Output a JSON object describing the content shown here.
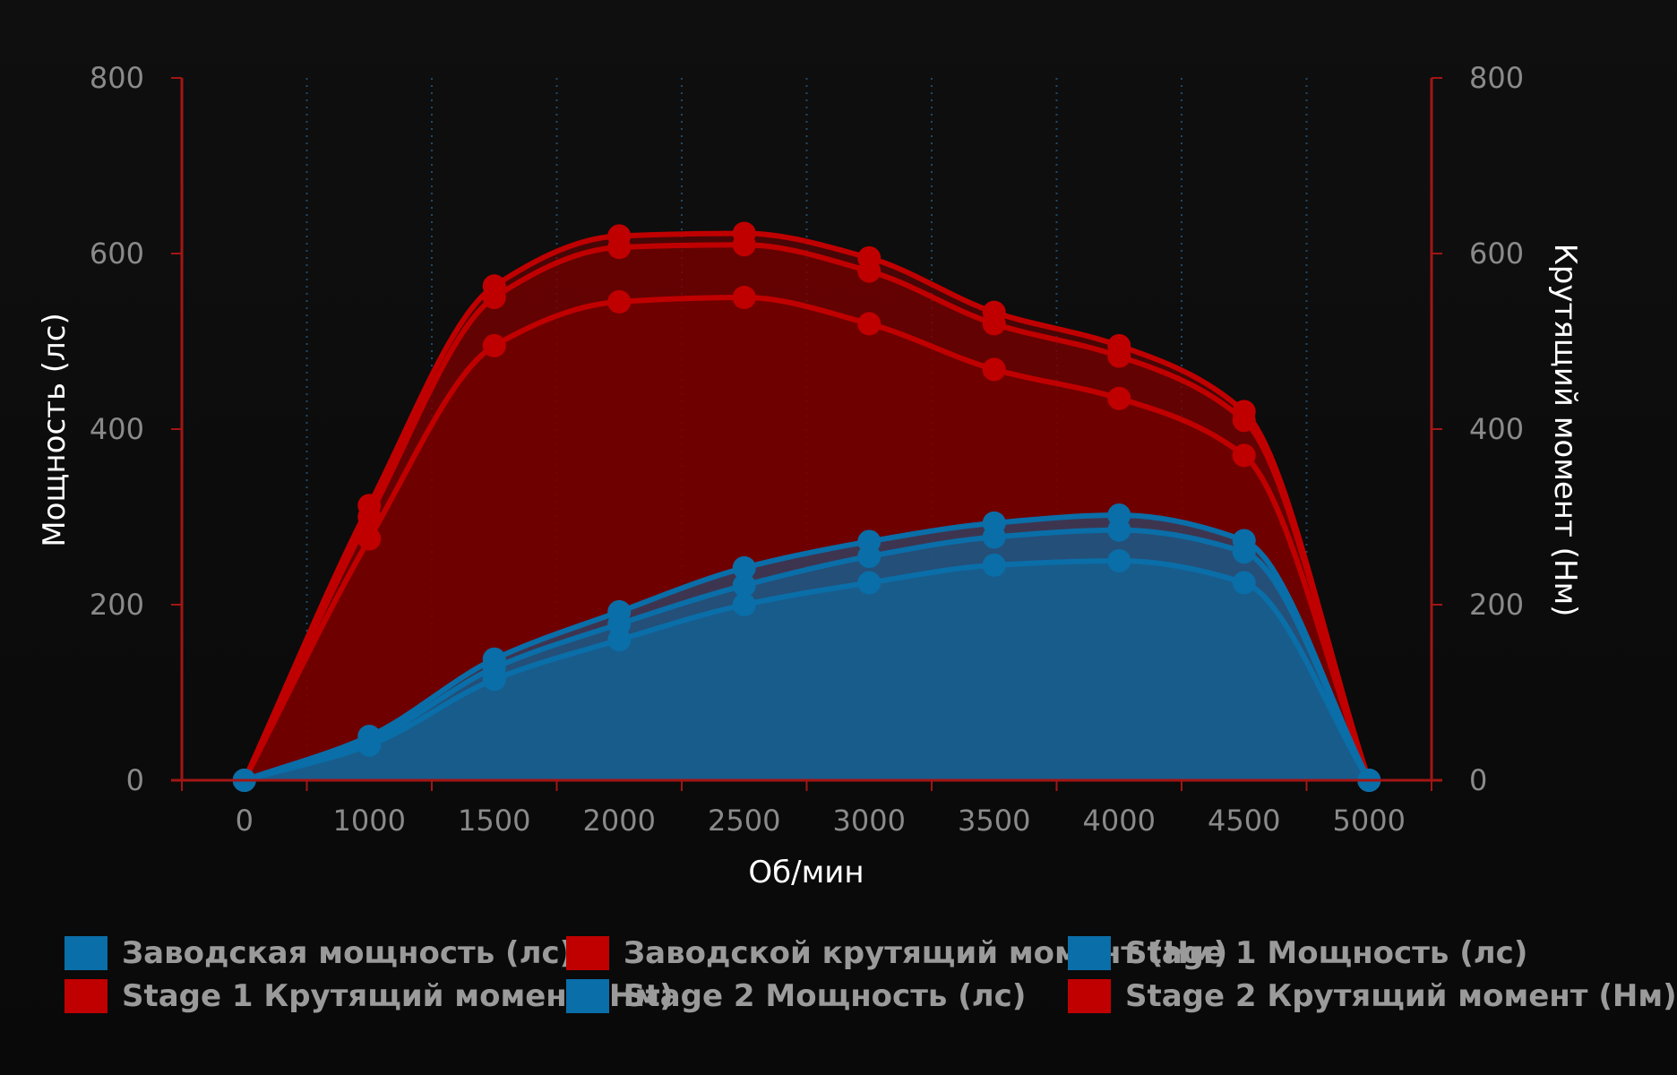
{
  "chart_data": {
    "type": "area",
    "x": [
      0,
      1000,
      1500,
      2000,
      2500,
      3000,
      3500,
      4000,
      4500,
      5000
    ],
    "x_tick_labels": [
      "0",
      "1000",
      "1500",
      "2000",
      "2500",
      "3000",
      "3500",
      "4000",
      "4500",
      "5000"
    ],
    "xlabel": "Об/мин",
    "ylabel_left": "Мощность (лс)",
    "ylabel_right": "Крутящий момент (Нм)",
    "ylim": [
      0,
      800
    ],
    "y_ticks": [
      0,
      200,
      400,
      600,
      800
    ],
    "grid": "vertical dotted",
    "legend_position": "bottom",
    "series": [
      {
        "name": "Заводская мощность (лс)",
        "axis": "left",
        "color": "#0a6ea8",
        "values": [
          0,
          40,
          115,
          160,
          200,
          225,
          245,
          250,
          225,
          0
        ]
      },
      {
        "name": "Заводской крутящий момент (Нм)",
        "axis": "right",
        "color": "#c00000",
        "values": [
          0,
          275,
          495,
          545,
          550,
          520,
          468,
          435,
          370,
          0
        ]
      },
      {
        "name": "Stage 1 Мощность (лс)",
        "axis": "left",
        "color": "#0a6ea8",
        "values": [
          0,
          45,
          128,
          178,
          222,
          255,
          277,
          285,
          260,
          0
        ]
      },
      {
        "name": "Stage 1 Крутящий момент (Нм)",
        "axis": "right",
        "color": "#c00000",
        "values": [
          0,
          300,
          550,
          607,
          610,
          580,
          520,
          483,
          410,
          0
        ]
      },
      {
        "name": "Stage 2 Мощность (лс)",
        "axis": "left",
        "color": "#0a6ea8",
        "values": [
          0,
          50,
          138,
          192,
          242,
          272,
          293,
          302,
          273,
          0
        ]
      },
      {
        "name": "Stage 2 Крутящий момент (Нм)",
        "axis": "right",
        "color": "#c00000",
        "values": [
          0,
          313,
          563,
          620,
          623,
          595,
          533,
          495,
          420,
          0
        ]
      }
    ]
  }
}
